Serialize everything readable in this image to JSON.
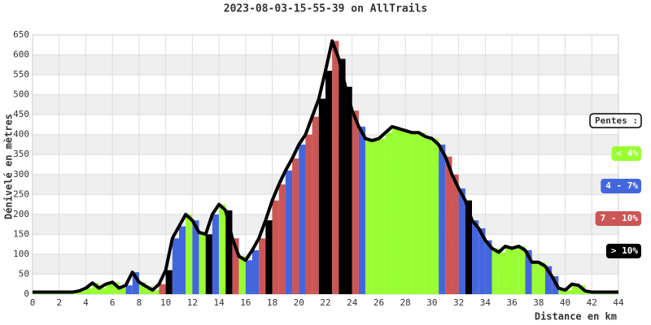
{
  "chart_data": {
    "type": "elevation",
    "title": "2023-08-03-15-55-39 on AllTrails",
    "y_label": "Dénivelé en mètres",
    "x_label": "Distance en km",
    "x": [
      0,
      0.5,
      1,
      1.5,
      2,
      2.5,
      3,
      3.5,
      4,
      4.5,
      5,
      5.5,
      6,
      6.5,
      7,
      7.5,
      8,
      8.5,
      9,
      9.5,
      10,
      10.5,
      11,
      11.5,
      12,
      12.5,
      13,
      13.5,
      14,
      14.5,
      15,
      15.5,
      16,
      16.5,
      17,
      17.5,
      18,
      18.5,
      19,
      19.5,
      20,
      20.5,
      21,
      21.5,
      22,
      22.5,
      23,
      23.5,
      24,
      24.5,
      25,
      25.5,
      26,
      26.5,
      27,
      27.5,
      28,
      28.5,
      29,
      29.5,
      30,
      30.5,
      31,
      31.5,
      32,
      32.5,
      33,
      33.5,
      34,
      34.5,
      35,
      35.5,
      36,
      36.5,
      37,
      37.5,
      38,
      38.5,
      39,
      39.5,
      40,
      40.5,
      41,
      41.5,
      42,
      42.5,
      43,
      43.5,
      44
    ],
    "values": [
      5,
      5,
      5,
      5,
      5,
      5,
      5,
      8,
      15,
      28,
      15,
      25,
      30,
      15,
      22,
      55,
      30,
      20,
      10,
      25,
      60,
      140,
      170,
      200,
      185,
      155,
      150,
      200,
      225,
      210,
      140,
      95,
      85,
      110,
      140,
      185,
      235,
      275,
      310,
      340,
      375,
      400,
      445,
      490,
      560,
      635,
      590,
      520,
      460,
      420,
      390,
      385,
      390,
      405,
      420,
      415,
      410,
      405,
      405,
      395,
      390,
      375,
      345,
      300,
      265,
      235,
      185,
      165,
      135,
      115,
      105,
      120,
      115,
      120,
      110,
      80,
      80,
      70,
      45,
      15,
      10,
      25,
      22,
      8,
      5,
      5,
      5,
      5,
      5
    ],
    "line_color": "#000000",
    "xlim": [
      0,
      44
    ],
    "ylim": [
      0,
      650
    ],
    "xticks": [
      0,
      2,
      4,
      6,
      8,
      10,
      12,
      14,
      16,
      18,
      20,
      22,
      24,
      26,
      28,
      30,
      32,
      34,
      36,
      38,
      40,
      42,
      44
    ],
    "yticks": [
      0,
      50,
      100,
      150,
      200,
      250,
      300,
      350,
      400,
      450,
      500,
      550,
      600,
      650
    ],
    "grid": true,
    "legend_title": "Pentes :",
    "slope_classes": [
      {
        "label": "< 4%",
        "value": 4,
        "color": "#99ff33"
      },
      {
        "label": "4 - 7%",
        "value": 7,
        "color": "#4466dd"
      },
      {
        "label": "7 - 10%",
        "value": 10,
        "color": "#cc5555"
      },
      {
        "label": "> 10%",
        "value": 10,
        "color": "#000000"
      }
    ]
  }
}
